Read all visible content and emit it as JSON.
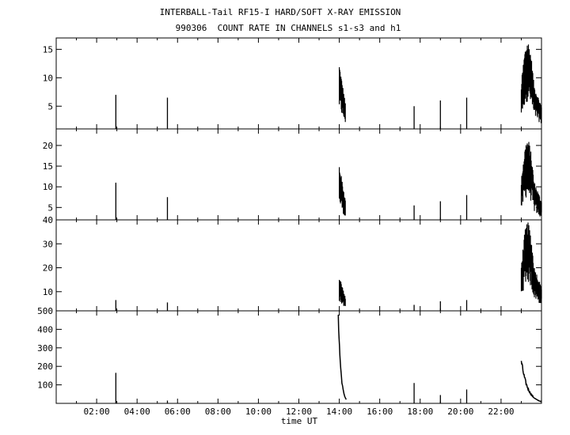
{
  "title_line1": "INTERBALL-Tail RF15-I HARD/SOFT X-RAY EMISSION",
  "title_line2": "990306  COUNT RATE IN CHANNELS s1-s3 and h1",
  "chart_data": {
    "type": "line",
    "title": "INTERBALL-Tail RF15-I HARD/SOFT X-RAY EMISSION",
    "subtitle": "990306  COUNT RATE IN CHANNELS s1-s3 and h1",
    "xlabel": "time UT",
    "xlim": [
      0,
      24
    ],
    "x_ticks": [
      "02:00",
      "04:00",
      "06:00",
      "08:00",
      "10:00",
      "12:00",
      "14:00",
      "16:00",
      "18:00",
      "20:00",
      "22:00"
    ],
    "panels": [
      {
        "name": "s1",
        "ylim": [
          1,
          17
        ],
        "y_ticks": [
          "15",
          "10",
          "5"
        ],
        "spikes": [
          [
            2.95,
            7
          ],
          [
            5.5,
            6.5
          ],
          [
            17.7,
            5
          ],
          [
            19.0,
            6
          ],
          [
            20.3,
            6.5
          ]
        ],
        "bursts": [
          {
            "t": [
              14.0,
              14.3
            ],
            "peak": 12.5,
            "shape": "decay"
          },
          {
            "t": [
              23.0,
              24.0
            ],
            "peak": 16.5,
            "shape": "rise-fall"
          }
        ]
      },
      {
        "name": "s2",
        "ylim": [
          2,
          24
        ],
        "y_ticks": [
          "20",
          "15",
          "10",
          "5"
        ],
        "spikes": [
          [
            2.95,
            11
          ],
          [
            5.5,
            7.5
          ],
          [
            17.7,
            5.5
          ],
          [
            19.0,
            6.5
          ],
          [
            20.3,
            8
          ]
        ],
        "bursts": [
          {
            "t": [
              14.0,
              14.3
            ],
            "peak": 15.5,
            "shape": "decay"
          },
          {
            "t": [
              23.0,
              24.0
            ],
            "peak": 21.5,
            "shape": "rise-fall"
          }
        ]
      },
      {
        "name": "s3",
        "ylim": [
          2,
          40
        ],
        "y_ticks": [
          "40",
          "30",
          "20",
          "10"
        ],
        "spikes": [
          [
            2.95,
            6.5
          ],
          [
            5.5,
            5.5
          ],
          [
            17.7,
            4.5
          ],
          [
            19.0,
            6
          ],
          [
            20.3,
            6.5
          ]
        ],
        "bursts": [
          {
            "t": [
              14.0,
              14.3
            ],
            "peak": 17,
            "shape": "decay"
          },
          {
            "t": [
              23.0,
              24.0
            ],
            "peak": 39,
            "shape": "rise-fall"
          }
        ]
      },
      {
        "name": "h1",
        "ylim": [
          0,
          500
        ],
        "y_ticks": [
          "500",
          "400",
          "300",
          "200",
          "100"
        ],
        "spikes": [
          [
            2.95,
            165
          ],
          [
            5.5,
            15
          ],
          [
            17.7,
            110
          ],
          [
            19.0,
            45
          ],
          [
            20.3,
            75
          ]
        ],
        "bursts": [
          {
            "t": [
              13.95,
              14.35
            ],
            "peak": 495,
            "shape": "decay-line"
          },
          {
            "t": [
              23.0,
              24.0
            ],
            "peak": 230,
            "shape": "decay-line"
          }
        ]
      }
    ]
  }
}
